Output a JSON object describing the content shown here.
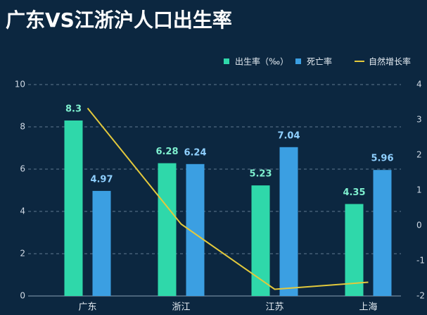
{
  "chart_data": {
    "type": "bar-line",
    "title": "广东VS江浙沪人口出生率",
    "categories": [
      "广东",
      "浙江",
      "江苏",
      "上海"
    ],
    "series": [
      {
        "name": "出生率（‰）",
        "color": "#2fd8aa",
        "type": "bar",
        "values": [
          8.3,
          6.28,
          5.23,
          4.35
        ]
      },
      {
        "name": "死亡率",
        "color": "#3b9fe2",
        "type": "bar",
        "values": [
          4.97,
          6.24,
          7.04,
          5.96
        ]
      },
      {
        "name": "自然增长率",
        "color": "#e3c93c",
        "type": "line",
        "axis": "y2",
        "values": [
          3.33,
          0.04,
          -1.81,
          -1.61
        ]
      }
    ],
    "ylim": [
      0,
      10
    ],
    "yticks": [
      0,
      2,
      4,
      6,
      8,
      10
    ],
    "y2lim": [
      -2,
      4
    ],
    "y2ticks": [
      -2,
      -1,
      0,
      1,
      2,
      3,
      4
    ],
    "grid": true,
    "legend": "top-right"
  }
}
